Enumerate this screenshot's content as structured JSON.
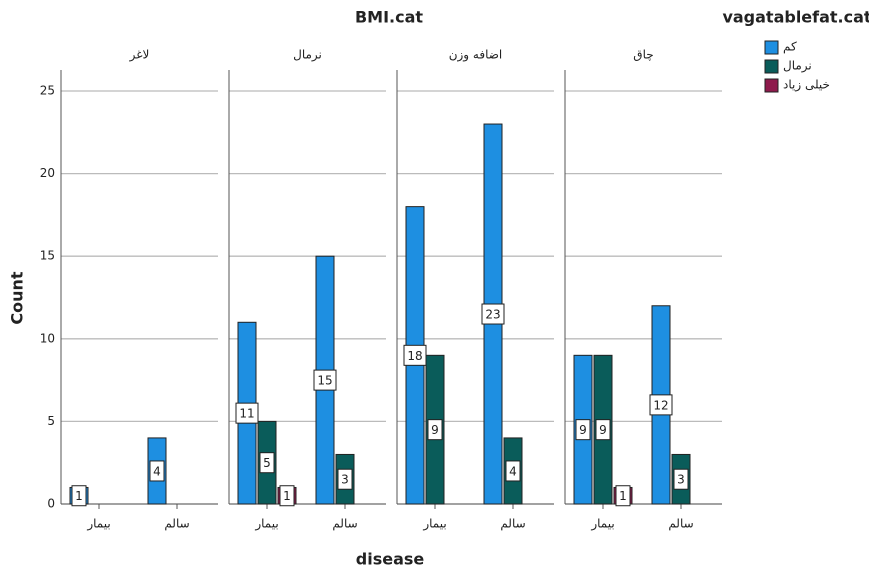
{
  "chart_data": {
    "type": "bar",
    "title": "BMI.cat",
    "legend_title": "vagatablefat.cat",
    "xlabel": "disease",
    "ylabel": "Count",
    "panels": [
      "لاغر",
      "نرمال",
      "اضافه وزن",
      "چاق"
    ],
    "categories": [
      "بیمار",
      "سالم"
    ],
    "series": [
      {
        "name": "کم",
        "color": "#1e8fe1",
        "values": [
          [
            1,
            4
          ],
          [
            11,
            15
          ],
          [
            18,
            23
          ],
          [
            9,
            12
          ]
        ]
      },
      {
        "name": "نرمال",
        "color": "#0a5c5a",
        "values": [
          [
            null,
            null
          ],
          [
            5,
            3
          ],
          [
            9,
            4
          ],
          [
            9,
            3
          ]
        ]
      },
      {
        "name": "خیلی زیاد",
        "color": "#8e1a4c",
        "values": [
          [
            null,
            null
          ],
          [
            1,
            null
          ],
          [
            null,
            null
          ],
          [
            1,
            null
          ]
        ]
      }
    ],
    "ylim": [
      0,
      25
    ],
    "yticks": [
      0,
      5,
      10,
      15,
      20,
      25
    ],
    "grid": true,
    "legend": "right"
  }
}
